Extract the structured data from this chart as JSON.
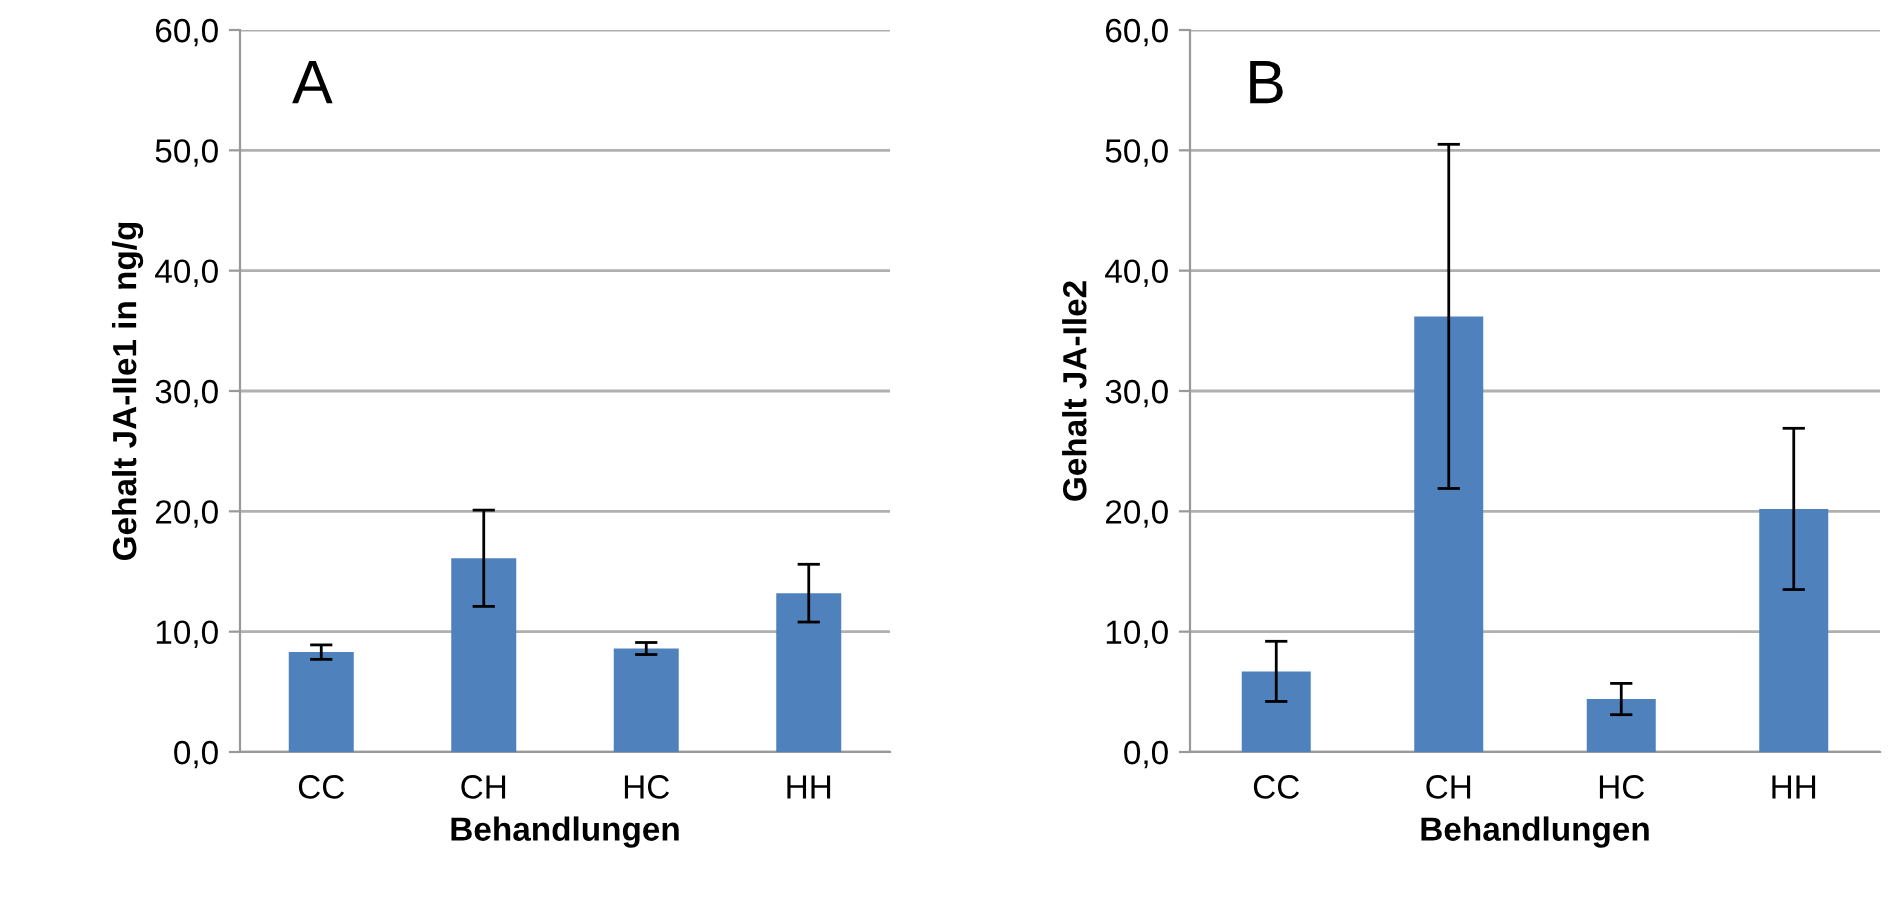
{
  "chart_data": [
    {
      "type": "bar",
      "categories": [
        "CC",
        "CH",
        "HC",
        "HH"
      ],
      "values": [
        8.3,
        16.1,
        8.6,
        13.2
      ],
      "errors": [
        0.6,
        4.0,
        0.5,
        2.4
      ],
      "color": "#4f81bd",
      "xlabel": "Behandlungen",
      "ylabel": "Gehalt JA-Ile1 in ng/g",
      "annotations": [
        "A"
      ],
      "ylim": [
        0,
        60
      ],
      "yticks": [
        {
          "value": 0,
          "label": "0,0"
        },
        {
          "value": 10,
          "label": "10,0"
        },
        {
          "value": 20,
          "label": "20,0"
        },
        {
          "value": 30,
          "label": "30,0"
        },
        {
          "value": 40,
          "label": "40,0"
        },
        {
          "value": 50,
          "label": "50,0"
        },
        {
          "value": 60,
          "label": "60,0"
        }
      ],
      "grid": "y"
    },
    {
      "type": "bar",
      "categories": [
        "CC",
        "CH",
        "HC",
        "HH"
      ],
      "values": [
        6.7,
        36.2,
        4.4,
        20.2
      ],
      "errors": [
        2.5,
        14.3,
        1.3,
        6.7
      ],
      "color": "#4f81bd",
      "xlabel": "Behandlungen",
      "ylabel": "Gehalt JA-Ile2",
      "annotations": [
        "B"
      ],
      "ylim": [
        0,
        60
      ],
      "yticks": [
        {
          "value": 0,
          "label": "0,0"
        },
        {
          "value": 10,
          "label": "10,0"
        },
        {
          "value": 20,
          "label": "20,0"
        },
        {
          "value": 30,
          "label": "30,0"
        },
        {
          "value": 40,
          "label": "40,0"
        },
        {
          "value": 50,
          "label": "50,0"
        },
        {
          "value": 60,
          "label": "60,0"
        }
      ],
      "grid": "y"
    }
  ]
}
